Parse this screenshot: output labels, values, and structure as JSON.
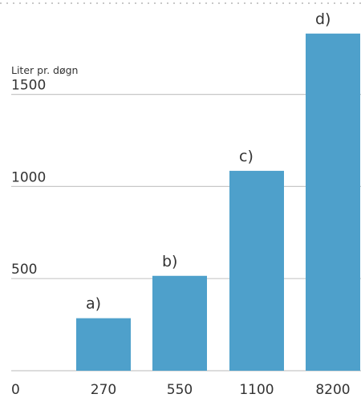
{
  "chart_data": {
    "type": "bar",
    "ylabel": "Liter pr. døgn",
    "categories": [
      "270",
      "550",
      "1100",
      "8200"
    ],
    "values": [
      285,
      515,
      1085,
      1830
    ],
    "bar_labels": [
      "a)",
      "b)",
      "c)",
      "d)"
    ],
    "yticks": [
      "0",
      "500",
      "1000",
      "1500"
    ],
    "ylim": [
      0,
      1830
    ],
    "grid": true,
    "bar_color": "#4ea0cb",
    "grid_color": "#c8c8c8"
  }
}
